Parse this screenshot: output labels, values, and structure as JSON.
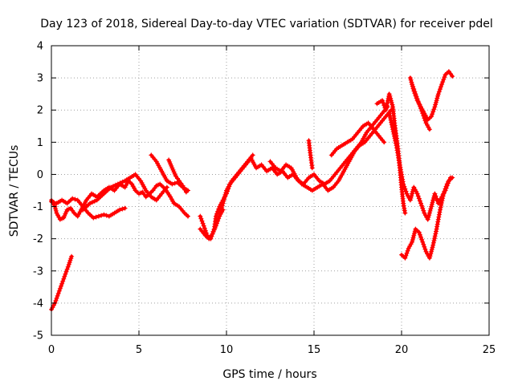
{
  "chart_data": {
    "type": "line",
    "title": "Day 123 of 2018, Sidereal Day-to-day VTEC variation (SDTVAR) for receiver pdel",
    "xlabel": "GPS time / hours",
    "ylabel": "SDTVAR / TECUs",
    "xlim": [
      0,
      25
    ],
    "ylim": [
      -5,
      4
    ],
    "xticks": [
      0,
      5,
      10,
      15,
      20,
      25
    ],
    "yticks": [
      -5,
      -4,
      -3,
      -2,
      -1,
      0,
      1,
      2,
      3,
      4
    ],
    "grid": true,
    "marker": "plus",
    "color": "#ff0000",
    "series": [
      {
        "name": "s1",
        "x": [
          0.0,
          0.2,
          0.4,
          0.6,
          0.8,
          1.0,
          1.15
        ],
        "y": [
          -4.2,
          -4.0,
          -3.7,
          -3.4,
          -3.1,
          -2.8,
          -2.55
        ]
      },
      {
        "name": "s2",
        "x": [
          0.0,
          0.2,
          0.3,
          0.5,
          0.7,
          0.9,
          1.1,
          1.3,
          1.5,
          1.7,
          2.0,
          2.3,
          2.6,
          3.0,
          3.3,
          3.6,
          3.9,
          4.2,
          4.4,
          4.6,
          4.8,
          5.0,
          5.2,
          5.4,
          5.6,
          5.8,
          6.0,
          6.2,
          6.5,
          6.8,
          7.0,
          7.3,
          7.6,
          7.8
        ],
        "y": [
          -0.8,
          -1.0,
          -1.2,
          -1.4,
          -1.35,
          -1.1,
          -1.05,
          -1.2,
          -1.3,
          -1.1,
          -0.8,
          -0.6,
          -0.7,
          -0.5,
          -0.4,
          -0.5,
          -0.3,
          -0.4,
          -0.2,
          -0.3,
          -0.5,
          -0.6,
          -0.55,
          -0.7,
          -0.6,
          -0.5,
          -0.35,
          -0.3,
          -0.45,
          -0.7,
          -0.9,
          -1.0,
          -1.2,
          -1.3
        ]
      },
      {
        "name": "s3",
        "x": [
          0.0,
          0.3,
          0.6,
          0.9,
          1.2,
          1.5,
          1.8,
          2.1,
          2.4,
          2.7,
          3.0,
          3.3,
          3.6,
          3.9,
          4.2
        ],
        "y": [
          -0.85,
          -0.9,
          -0.8,
          -0.9,
          -0.75,
          -0.8,
          -1.0,
          -1.2,
          -1.35,
          -1.3,
          -1.25,
          -1.3,
          -1.2,
          -1.1,
          -1.05
        ]
      },
      {
        "name": "s4",
        "x": [
          1.8,
          2.2,
          2.6,
          3.0,
          3.4,
          3.8,
          4.2,
          4.5,
          4.8,
          5.1,
          5.4,
          5.7,
          6.0,
          6.3,
          6.6
        ],
        "y": [
          -1.1,
          -0.9,
          -0.8,
          -0.6,
          -0.4,
          -0.3,
          -0.2,
          -0.1,
          0.0,
          -0.2,
          -0.5,
          -0.7,
          -0.8,
          -0.6,
          -0.4
        ]
      },
      {
        "name": "s5",
        "x": [
          5.7,
          6.0,
          6.3,
          6.6,
          6.9,
          7.2,
          7.5,
          7.8
        ],
        "y": [
          0.6,
          0.4,
          0.1,
          -0.2,
          -0.3,
          -0.25,
          -0.4,
          -0.5
        ]
      },
      {
        "name": "s6",
        "x": [
          6.7,
          6.9,
          7.1,
          7.3,
          7.5,
          7.7
        ],
        "y": [
          0.45,
          0.2,
          -0.05,
          -0.2,
          -0.35,
          -0.55
        ]
      },
      {
        "name": "s7",
        "x": [
          8.5,
          8.7,
          8.9,
          9.1,
          9.3,
          9.4,
          9.6,
          9.8,
          10.0,
          10.2,
          10.5,
          10.8,
          11.1,
          11.4,
          11.7,
          12.0,
          12.3,
          12.6,
          12.9,
          13.2,
          13.5,
          13.8,
          14.1,
          14.4,
          14.7,
          15.0,
          15.3,
          15.6,
          15.9,
          16.2,
          16.5,
          16.8,
          17.1,
          17.4,
          17.7,
          18.0,
          18.3,
          18.6,
          18.9,
          19.2
        ],
        "y": [
          -1.3,
          -1.6,
          -1.9,
          -2.0,
          -1.7,
          -1.3,
          -1.0,
          -0.8,
          -0.6,
          -0.3,
          -0.1,
          0.1,
          0.3,
          0.5,
          0.2,
          0.3,
          0.1,
          0.2,
          0.0,
          0.1,
          -0.1,
          0.0,
          -0.2,
          -0.3,
          -0.1,
          0.0,
          -0.2,
          -0.3,
          -0.2,
          0.0,
          0.2,
          0.4,
          0.6,
          0.8,
          1.0,
          1.3,
          1.5,
          1.7,
          1.9,
          2.1
        ]
      },
      {
        "name": "s8",
        "x": [
          8.5,
          8.8,
          9.0,
          9.2,
          9.4,
          9.6,
          9.8
        ],
        "y": [
          -1.7,
          -1.9,
          -2.0,
          -1.85,
          -1.6,
          -1.3,
          -1.1
        ]
      },
      {
        "name": "s9",
        "x": [
          9.6,
          9.8,
          10.0,
          10.3,
          10.6,
          10.9,
          11.2,
          11.5
        ],
        "y": [
          -1.3,
          -0.9,
          -0.5,
          -0.2,
          0.0,
          0.2,
          0.4,
          0.6
        ]
      },
      {
        "name": "s10",
        "x": [
          12.5,
          12.8,
          13.1,
          13.4,
          13.7,
          14.0,
          14.3,
          14.6,
          14.9,
          15.2,
          15.5,
          15.8,
          16.1,
          16.4,
          16.7,
          17.0,
          17.3,
          17.6,
          17.9,
          18.2,
          18.5,
          18.8,
          19.1,
          19.4
        ],
        "y": [
          0.4,
          0.2,
          0.1,
          0.3,
          0.2,
          -0.1,
          -0.3,
          -0.4,
          -0.5,
          -0.4,
          -0.3,
          -0.5,
          -0.4,
          -0.2,
          0.1,
          0.4,
          0.7,
          0.9,
          1.0,
          1.2,
          1.4,
          1.6,
          1.8,
          2.0
        ]
      },
      {
        "name": "s11",
        "x": [
          14.7,
          14.8,
          14.9
        ],
        "y": [
          1.05,
          0.6,
          0.2
        ]
      },
      {
        "name": "s12",
        "x": [
          16.0,
          16.3,
          16.6,
          16.9,
          17.2,
          17.5,
          17.8,
          18.1,
          18.4,
          18.7,
          19.0
        ],
        "y": [
          0.6,
          0.8,
          0.9,
          1.0,
          1.1,
          1.3,
          1.5,
          1.6,
          1.4,
          1.2,
          1.0
        ]
      },
      {
        "name": "s13",
        "x": [
          18.6,
          18.9,
          19.1,
          19.3,
          19.5,
          19.6,
          19.7,
          19.8,
          19.9,
          20.0,
          20.1,
          20.2
        ],
        "y": [
          2.2,
          2.3,
          2.0,
          2.5,
          2.1,
          1.6,
          1.2,
          0.8,
          0.2,
          -0.4,
          -0.9,
          -1.2
        ]
      },
      {
        "name": "s14",
        "x": [
          19.3,
          19.5,
          19.7,
          19.9,
          20.1,
          20.3,
          20.5,
          20.7,
          20.9,
          21.1,
          21.3,
          21.5,
          21.7,
          21.9,
          22.1,
          22.3,
          22.5,
          22.7,
          22.9
        ],
        "y": [
          1.9,
          1.4,
          0.9,
          0.3,
          -0.3,
          -0.6,
          -0.8,
          -0.4,
          -0.6,
          -0.9,
          -1.2,
          -1.4,
          -1.0,
          -0.6,
          -0.9,
          -0.7,
          -0.5,
          -0.2,
          -0.1
        ]
      },
      {
        "name": "s15",
        "x": [
          20.0,
          20.2,
          20.4,
          20.6,
          20.8,
          21.0,
          21.2,
          21.4,
          21.6,
          21.8,
          22.0,
          22.2,
          22.4,
          22.6,
          22.8
        ],
        "y": [
          -2.5,
          -2.6,
          -2.3,
          -2.1,
          -1.7,
          -1.8,
          -2.1,
          -2.4,
          -2.6,
          -2.2,
          -1.7,
          -1.1,
          -0.6,
          -0.3,
          -0.1
        ]
      },
      {
        "name": "s16",
        "x": [
          20.5,
          20.7,
          20.9,
          21.1,
          21.3,
          21.5,
          21.7,
          21.9,
          22.1,
          22.3,
          22.5,
          22.7,
          22.9
        ],
        "y": [
          3.0,
          2.6,
          2.3,
          2.1,
          1.9,
          1.7,
          1.8,
          2.1,
          2.5,
          2.8,
          3.1,
          3.2,
          3.05
        ]
      },
      {
        "name": "s17",
        "x": [
          20.6,
          20.8,
          21.0,
          21.2,
          21.4,
          21.6
        ],
        "y": [
          2.8,
          2.5,
          2.2,
          1.9,
          1.6,
          1.4
        ]
      }
    ]
  }
}
